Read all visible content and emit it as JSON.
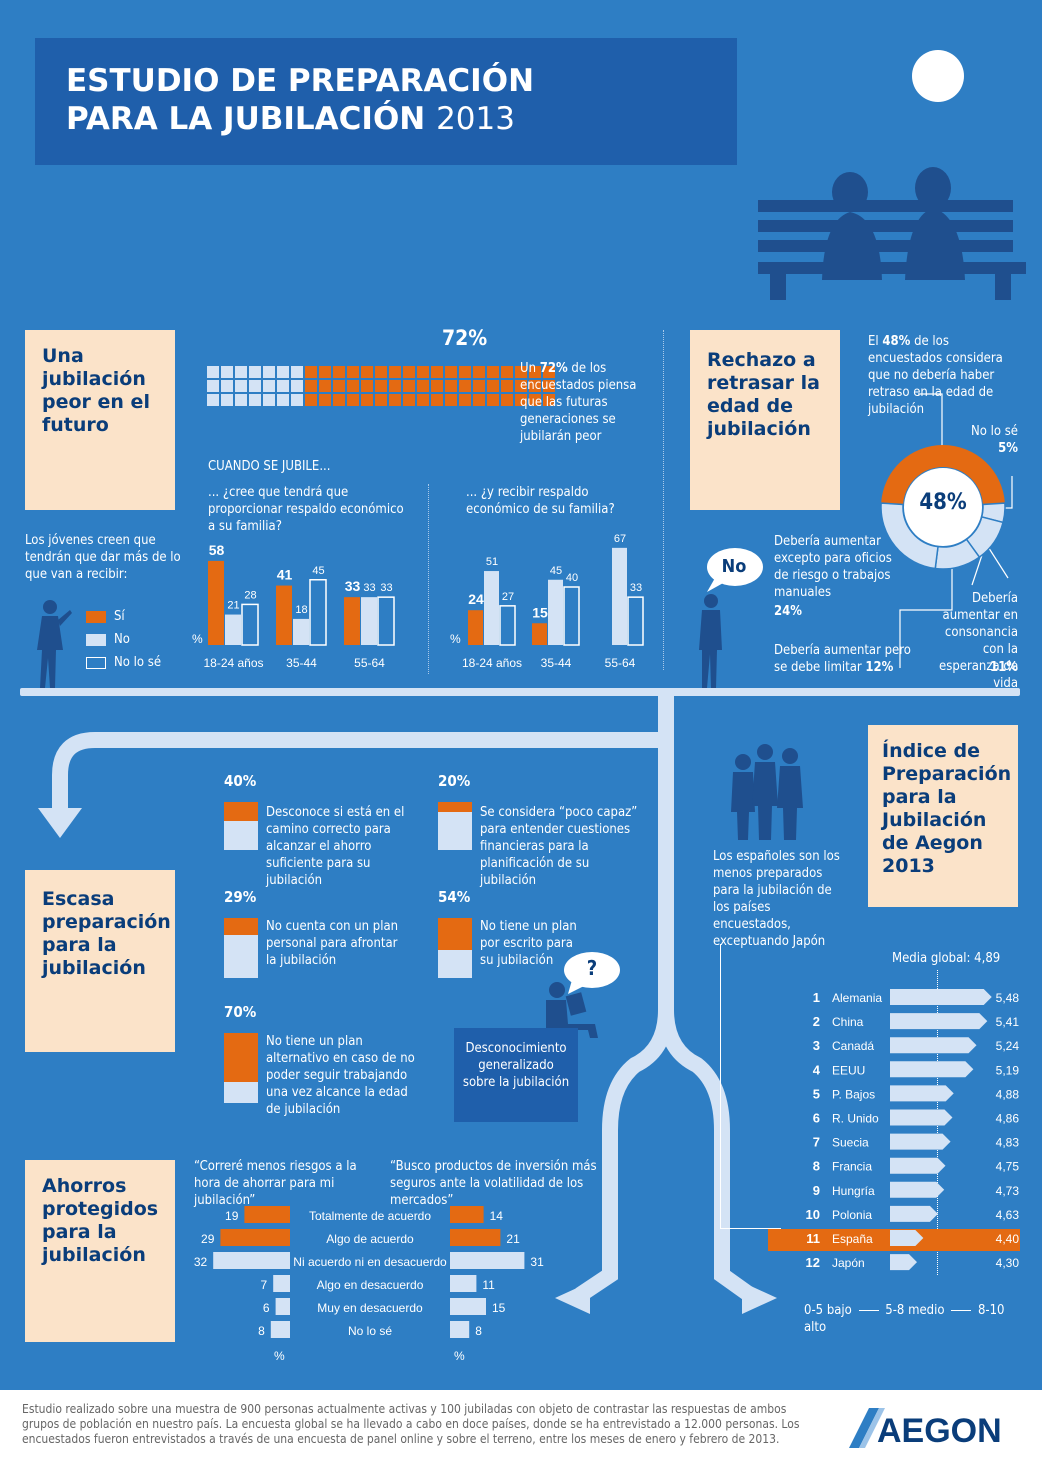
{
  "title": {
    "line1": "ESTUDIO DE PREPARACIÓN",
    "line2": "PARA LA JUBILACIÓN",
    "year": "2013"
  },
  "colors": {
    "background": "#2e7ec4",
    "panel": "#fbe3c9",
    "orange": "#e46a12",
    "light_blue": "#d4e3f5",
    "dark": "#0a3d7a"
  },
  "sec1": {
    "heading": "Una jubilación peor en el futuro",
    "pct": "72%",
    "waffle_pct": 72,
    "desc_pre": "Un ",
    "desc_bold": "72%",
    "desc_post": " de los encuestados piensa que las futuras generaciones se jubilarán peor",
    "young_text": "Los jóvenes creen que tendrán que dar más de lo que van a recibir:",
    "legend": [
      "Sí",
      "No",
      "No lo sé"
    ],
    "cuando": "CUANDO SE JUBILE...",
    "chart1_title": "... ¿cree que tendrá que proporcionar respaldo económico a su familia?",
    "chart2_title": "... ¿y recibir respaldo económico de su familia?",
    "pct_unit": "%"
  },
  "chart_data": [
    {
      "type": "bar",
      "title": "... ¿cree que tendrá que proporcionar respaldo económico a su familia?",
      "categories": [
        "18-24 años",
        "35-44",
        "55-64"
      ],
      "series": [
        {
          "name": "Sí",
          "values": [
            58,
            41,
            33
          ]
        },
        {
          "name": "No",
          "values": [
            21,
            18,
            33
          ]
        },
        {
          "name": "No lo sé",
          "values": [
            28,
            45,
            33
          ]
        }
      ]
    },
    {
      "type": "bar",
      "title": "... ¿y recibir respaldo económico de su familia?",
      "categories": [
        "18-24 años",
        "35-44",
        "55-64"
      ],
      "series": [
        {
          "name": "Sí",
          "values": [
            24,
            15,
            null
          ]
        },
        {
          "name": "No",
          "values": [
            51,
            45,
            67
          ]
        },
        {
          "name": "No lo sé",
          "values": [
            27,
            40,
            33
          ]
        }
      ]
    },
    {
      "type": "pie",
      "title": "Rechazo a retrasar la edad de jubilación",
      "labels": [
        "No debería haber retraso",
        "No lo sé",
        "Debería aumentar en consonancia con la esperanza de vida",
        "Debería aumentar pero se debe limitar",
        "Debería aumentar excepto para oficios de riesgo o trabajos manuales"
      ],
      "values": [
        48,
        5,
        11,
        12,
        24
      ]
    },
    {
      "type": "bar",
      "title": "Índice de Preparación para la Jubilación de Aegon 2013",
      "categories": [
        "Alemania",
        "China",
        "Canadá",
        "EEUU",
        "P. Bajos",
        "R. Unido",
        "Suecia",
        "Francia",
        "Hungría",
        "Polonia",
        "España",
        "Japón"
      ],
      "values": [
        5.48,
        5.41,
        5.24,
        5.19,
        4.88,
        4.86,
        4.83,
        4.75,
        4.73,
        4.63,
        4.4,
        4.3
      ]
    },
    {
      "type": "bar",
      "title": "“Correré menos riesgos a la hora de ahorrar para mi jubilación”",
      "categories": [
        "Totalmente de acuerdo",
        "Algo de acuerdo",
        "Ni acuerdo ni en desacuerdo",
        "Algo en desacuerdo",
        "Muy en desacuerdo",
        "No lo sé"
      ],
      "values": [
        19,
        29,
        32,
        7,
        6,
        8
      ]
    },
    {
      "type": "bar",
      "title": "“Busco productos de inversión más seguros ante la volatilidad de los mercados”",
      "categories": [
        "Totalmente de acuerdo",
        "Algo de acuerdo",
        "Ni acuerdo ni en desacuerdo",
        "Algo en desacuerdo",
        "Muy en desacuerdo",
        "No lo sé"
      ],
      "values": [
        14,
        21,
        31,
        11,
        15,
        8
      ]
    }
  ],
  "sec2": {
    "heading": "Rechazo a retrasar la edad de jubilación",
    "no_bubble": "No",
    "top_text_pre": "El ",
    "top_text_bold": "48%",
    "top_text_post": " de los encuestados considera que no debería haber retraso en la edad de jubilación",
    "center": "48%",
    "nolose": "No lo sé",
    "nolose_pct": "5%",
    "excepto": "Debería aumentar excepto para oficios de riesgo o trabajos manuales",
    "excepto_pct": "24%",
    "limitar": "Debería aumentar pero se debe limitar",
    "limitar_pct": "12%",
    "esperanza": "Debería aumentar en consonancia con la esperanza de vida",
    "esperanza_pct": "11%"
  },
  "sec3": {
    "heading": "Escasa preparación para la jubilación",
    "items": [
      {
        "pct": "40%",
        "value": 40,
        "text": "Desconoce si está en el camino correcto para alcanzar el ahorro suficiente para su jubilación"
      },
      {
        "pct": "20%",
        "value": 20,
        "text": "Se considera “poco capaz” para entender cuestiones financieras para la planificación de su jubilación"
      },
      {
        "pct": "29%",
        "value": 29,
        "text": "No cuenta con un plan personal para afrontar la jubilación"
      },
      {
        "pct": "54%",
        "value": 54,
        "text": "No tiene un plan por escrito para su jubilación"
      },
      {
        "pct": "70%",
        "value": 70,
        "text": "No tiene un plan alternativo en caso de no poder seguir trabajando una vez alcance la edad de jubilación"
      }
    ],
    "desconocimiento": "Desconocimiento generalizado sobre la jubilación",
    "question": "?"
  },
  "sec4": {
    "heading": "Índice de Preparación para la Jubilación de Aegon 2013",
    "spain_text": "Los españoles son los menos preparados para la jubilación de los países encuestados, exceptuando Japón",
    "media": "Media global: 4,89",
    "ranks": [
      "1",
      "2",
      "3",
      "4",
      "5",
      "6",
      "7",
      "8",
      "9",
      "10",
      "11",
      "12"
    ],
    "values_text": [
      "5,48",
      "5,41",
      "5,24",
      "5,19",
      "4,88",
      "4,86",
      "4,83",
      "4,75",
      "4,73",
      "4,63",
      "4,40",
      "4,30"
    ],
    "scale_low": "0-5 bajo",
    "scale_mid": "5-8 medio",
    "scale_high": "8-10 alto"
  },
  "sec5": {
    "heading": "Ahorros protegidos para la jubilación",
    "quote1": "“Correré menos riesgos a la hora de ahorrar para mi jubilación”",
    "quote2": "“Busco productos de inversión más seguros ante la volatilidad de los mercados”",
    "pct_unit": "%"
  },
  "footer": {
    "text": "Estudio realizado sobre una muestra de 900 personas actualmente activas y 100 jubiladas con objeto de contrastar las respuestas de ambos grupos de población en nuestro país. La encuesta global se ha llevado a cabo en doce países, donde se ha entrevistado a 12.000 personas. Los encuestados fueron entrevistados a través de una encuesta de panel online y sobre el terreno, entre los meses de enero y febrero de 2013.",
    "logo": "AEGON"
  }
}
